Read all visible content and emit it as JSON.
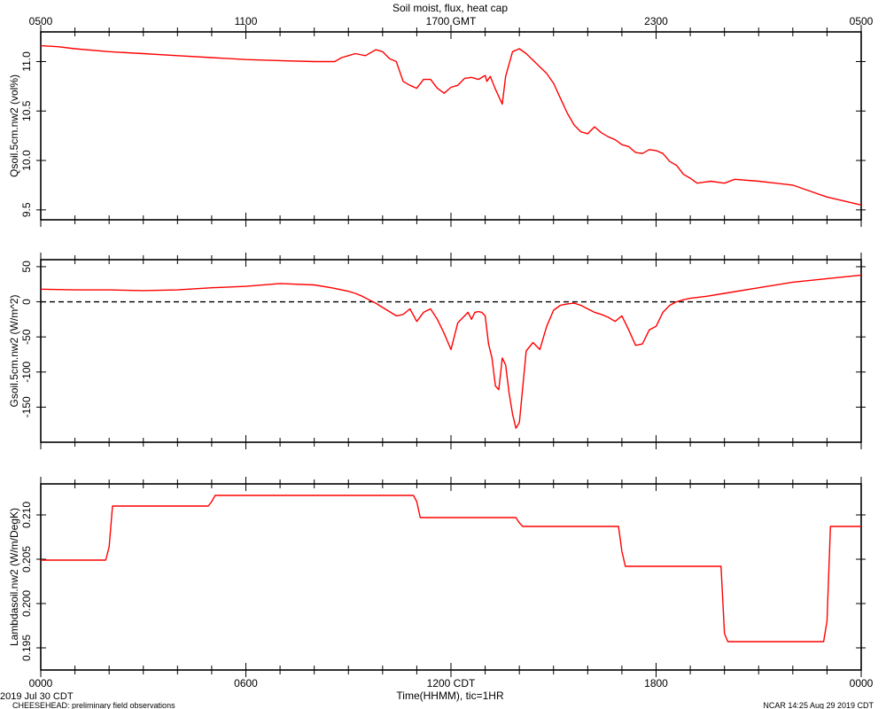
{
  "title": "Soil moist, flux, heat cap",
  "footer": {
    "left_top": "2019 Jul 30 CDT",
    "left_bottom": "CHEESEHEAD: preliminary field observations",
    "right": "NCAR 14:25 Aug 29 2019 CDT"
  },
  "x_axis": {
    "hours_range": [
      0,
      24
    ],
    "bottom_label": "Time(HHMM), tic=1HR",
    "bottom_ticks": [
      {
        "h": 0,
        "label": "0000"
      },
      {
        "h": 6,
        "label": "0600"
      },
      {
        "h": 12,
        "label": "1200 CDT"
      },
      {
        "h": 18,
        "label": "1800"
      },
      {
        "h": 24,
        "label": "0000"
      }
    ],
    "top_ticks": [
      {
        "h": 0,
        "label": "0500"
      },
      {
        "h": 6,
        "label": "1100"
      },
      {
        "h": 12,
        "label": "1700 GMT"
      },
      {
        "h": 18,
        "label": "2300"
      },
      {
        "h": 24,
        "label": "0500"
      }
    ]
  },
  "colors": {
    "series": "#ff0000",
    "axes": "#000000"
  },
  "chart_data": [
    {
      "type": "line",
      "ylabel": "Qsoil.5cm.nw2 (vol%)",
      "ylim": [
        9.4,
        11.3
      ],
      "yticks": [
        9.5,
        10.0,
        10.5,
        11.0
      ],
      "ytick_labels": [
        "9.5",
        "10.0",
        "10.5",
        "11.0"
      ],
      "x": [
        0,
        0.5,
        1,
        2,
        3,
        4,
        5,
        6,
        7,
        8,
        8.6,
        8.8,
        9,
        9.2,
        9.5,
        9.8,
        10.0,
        10.2,
        10.4,
        10.6,
        10.8,
        11.0,
        11.2,
        11.4,
        11.6,
        11.8,
        12.0,
        12.2,
        12.4,
        12.6,
        12.8,
        13.0,
        13.05,
        13.15,
        13.3,
        13.5,
        13.6,
        13.8,
        14.0,
        14.2,
        14.5,
        14.8,
        15.0,
        15.2,
        15.4,
        15.6,
        15.8,
        16.0,
        16.2,
        16.4,
        16.6,
        16.8,
        17.0,
        17.2,
        17.4,
        17.6,
        17.8,
        18.0,
        18.2,
        18.4,
        18.6,
        18.8,
        19.0,
        19.2,
        19.4,
        19.6,
        20.0,
        20.3,
        21.0,
        21.5,
        22.0,
        22.5,
        23.0,
        23.5,
        24.0
      ],
      "y": [
        11.16,
        11.15,
        11.13,
        11.1,
        11.08,
        11.06,
        11.04,
        11.02,
        11.01,
        11.0,
        11.0,
        11.04,
        11.06,
        11.08,
        11.06,
        11.12,
        11.1,
        11.03,
        11.0,
        10.8,
        10.76,
        10.73,
        10.82,
        10.82,
        10.73,
        10.68,
        10.74,
        10.76,
        10.83,
        10.84,
        10.82,
        10.86,
        10.8,
        10.85,
        10.72,
        10.57,
        10.85,
        11.1,
        11.13,
        11.08,
        10.98,
        10.88,
        10.78,
        10.63,
        10.48,
        10.36,
        10.29,
        10.27,
        10.34,
        10.28,
        10.24,
        10.21,
        10.16,
        10.14,
        10.08,
        10.07,
        10.11,
        10.1,
        10.07,
        9.99,
        9.95,
        9.86,
        9.82,
        9.77,
        9.78,
        9.79,
        9.77,
        9.81,
        9.79,
        9.77,
        9.75,
        9.69,
        9.63,
        9.59,
        9.55
      ]
    },
    {
      "type": "line",
      "ylabel": "Gsoil.5cm.nw2 (W/m^2)",
      "ylim": [
        -200,
        60
      ],
      "yticks": [
        -150,
        -100,
        -50,
        0,
        50
      ],
      "ytick_labels": [
        "-150",
        "-100",
        "-50",
        "0",
        "50"
      ],
      "zero_line": true,
      "x": [
        0,
        1,
        2,
        3,
        4,
        5,
        6,
        7,
        8,
        8.5,
        9,
        9.2,
        9.4,
        9.6,
        9.8,
        10.0,
        10.2,
        10.4,
        10.6,
        10.8,
        11.0,
        11.2,
        11.4,
        11.6,
        11.8,
        12.0,
        12.2,
        12.4,
        12.5,
        12.6,
        12.7,
        12.8,
        12.9,
        13.0,
        13.1,
        13.2,
        13.3,
        13.4,
        13.5,
        13.6,
        13.7,
        13.8,
        13.9,
        14.0,
        14.2,
        14.4,
        14.6,
        14.8,
        15.0,
        15.2,
        15.4,
        15.6,
        15.8,
        16.0,
        16.2,
        16.4,
        16.6,
        16.8,
        17.0,
        17.2,
        17.4,
        17.6,
        17.8,
        18.0,
        18.2,
        18.4,
        18.6,
        18.8,
        19.0,
        19.5,
        20.0,
        21.0,
        22.0,
        23.0,
        24.0
      ],
      "y": [
        18,
        17,
        17,
        16,
        17,
        20,
        22,
        26,
        24,
        20,
        15,
        12,
        8,
        3,
        -2,
        -8,
        -14,
        -20,
        -18,
        -10,
        -28,
        -15,
        -10,
        -25,
        -45,
        -68,
        -30,
        -20,
        -15,
        -25,
        -15,
        -14,
        -15,
        -20,
        -60,
        -80,
        -120,
        -125,
        -80,
        -90,
        -130,
        -160,
        -180,
        -172,
        -70,
        -58,
        -68,
        -35,
        -12,
        -5,
        -3,
        -2,
        -5,
        -10,
        -15,
        -18,
        -22,
        -28,
        -20,
        -40,
        -62,
        -60,
        -40,
        -35,
        -15,
        -5,
        0,
        3,
        5,
        8,
        12,
        20,
        28,
        33,
        38
      ]
    },
    {
      "type": "line",
      "ylabel": "Lambdasoil.nw2 (W/m/DegK)",
      "ylim": [
        0.1925,
        0.2135
      ],
      "yticks": [
        0.195,
        0.2,
        0.205,
        0.21
      ],
      "ytick_labels": [
        "0.195",
        "0.200",
        "0.205",
        "0.210"
      ],
      "x": [
        0,
        1.9,
        2.0,
        2.1,
        4.9,
        5.0,
        5.1,
        10.9,
        11.0,
        11.1,
        13.9,
        14.0,
        14.1,
        16.9,
        17.0,
        17.1,
        19.9,
        20.0,
        20.1,
        22.9,
        23.0,
        23.1,
        24.0
      ],
      "y": [
        0.2049,
        0.2049,
        0.2064,
        0.211,
        0.211,
        0.2115,
        0.2122,
        0.2122,
        0.2115,
        0.2097,
        0.2097,
        0.2091,
        0.2087,
        0.2087,
        0.2059,
        0.2042,
        0.2042,
        0.1966,
        0.1957,
        0.1957,
        0.198,
        0.2087,
        0.2087
      ]
    }
  ]
}
